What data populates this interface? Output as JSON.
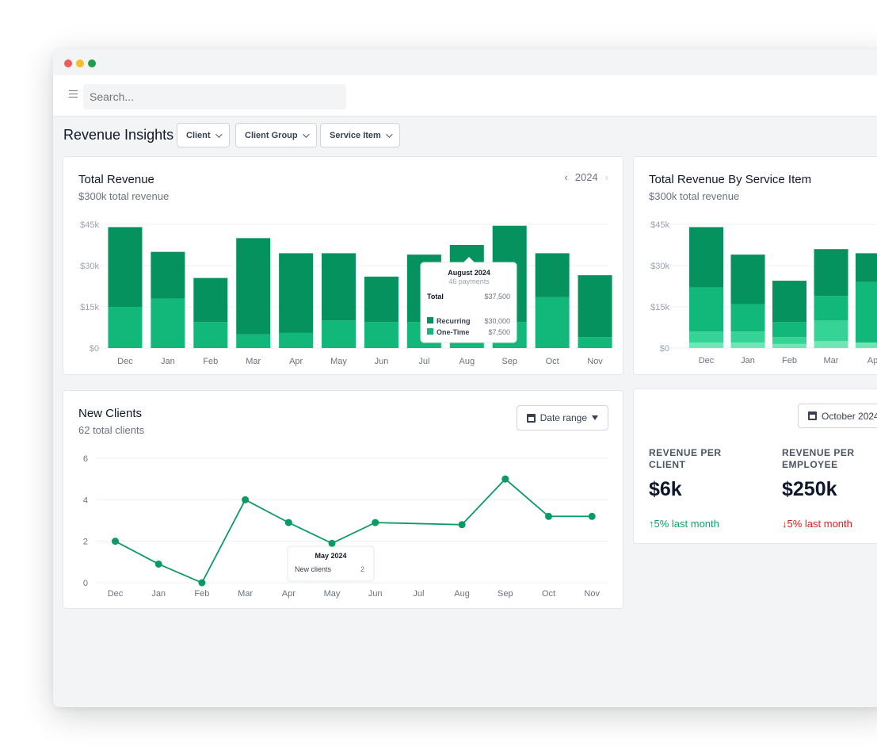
{
  "window": {
    "controls": [
      "close",
      "minimize",
      "maximize"
    ]
  },
  "search": {
    "placeholder": "Search..."
  },
  "page": {
    "title": "Revenue Insights"
  },
  "filters": [
    {
      "label": "Client"
    },
    {
      "label": "Client Group"
    },
    {
      "label": "Service Item"
    }
  ],
  "total_revenue": {
    "title": "Total Revenue",
    "subtitle": "$300k total revenue",
    "year": "2024",
    "prev_icon": "chevron-left-icon",
    "next_icon": "chevron-right-icon",
    "tooltip": {
      "title": "August 2024",
      "subtitle": "46 payments",
      "total_label": "Total",
      "total_value": "$37,500",
      "rows": [
        {
          "label": "Recurring",
          "value": "$30,000"
        },
        {
          "label": "One-Time",
          "value": "$7,500"
        }
      ]
    }
  },
  "revenue_by_service": {
    "title": "Total Revenue By Service Item",
    "subtitle": "$300k total revenue"
  },
  "new_clients": {
    "title": "New Clients",
    "subtitle": "62 total clients",
    "date_range_label": "Date range",
    "tooltip": {
      "title": "May 2024",
      "label": "New clients",
      "value": "2"
    }
  },
  "metrics": {
    "month_label": "October 2024",
    "items": [
      {
        "label": "REVENUE PER CLIENT",
        "value": "$6k",
        "change": "5% last month",
        "direction": "up"
      },
      {
        "label": "REVENUE PER EMPLOYEE",
        "value": "$250k",
        "change": "5% last month",
        "direction": "down"
      }
    ]
  },
  "colors": {
    "dark_green": "#05925f",
    "mid_green": "#12b87a",
    "light_green": "#35d496",
    "pale_green": "#6ee7b7",
    "line_green": "#0a9a63",
    "up": "#10a36a",
    "down": "#e11d1d"
  },
  "chart_data": [
    {
      "type": "bar",
      "stacked": true,
      "categories": [
        "Dec",
        "Jan",
        "Feb",
        "Mar",
        "Apr",
        "May",
        "Jun",
        "Jul",
        "Aug",
        "Sep",
        "Oct",
        "Nov"
      ],
      "series": [
        {
          "name": "One-Time",
          "values": [
            15000,
            18000,
            9500,
            5000,
            5500,
            10000,
            9500,
            9500,
            7500,
            9500,
            18500,
            4000
          ]
        },
        {
          "name": "Recurring",
          "values": [
            29000,
            17000,
            16000,
            35000,
            29000,
            24500,
            16500,
            24500,
            30000,
            35000,
            16000,
            22500
          ]
        }
      ],
      "ylim": [
        0,
        45000
      ],
      "yticks": [
        0,
        15000,
        30000,
        45000
      ],
      "ytick_labels": [
        "$0",
        "$15k",
        "$30k",
        "$45k"
      ],
      "grid": true
    },
    {
      "type": "bar",
      "stacked": true,
      "categories": [
        "Dec",
        "Jan",
        "Feb",
        "Mar",
        "Ap"
      ],
      "series": [
        {
          "values": [
            2000,
            2000,
            1500,
            2500,
            2000
          ]
        },
        {
          "values": [
            4000,
            4000,
            2500,
            7500,
            0
          ]
        },
        {
          "values": [
            16000,
            10000,
            5500,
            9000,
            22000
          ]
        },
        {
          "values": [
            22000,
            18000,
            15000,
            17000,
            10500
          ]
        }
      ],
      "ylim": [
        0,
        45000
      ],
      "yticks": [
        0,
        15000,
        30000,
        45000
      ],
      "ytick_labels": [
        "$0",
        "$15k",
        "$30k",
        "$45k"
      ],
      "grid": true
    },
    {
      "type": "line",
      "categories": [
        "Dec",
        "Jan",
        "Feb",
        "Mar",
        "Apr",
        "May",
        "Jun",
        "Jul",
        "Aug",
        "Sep",
        "Oct",
        "Nov"
      ],
      "points": [
        {
          "x": "Dec",
          "y": 2
        },
        {
          "x": "Jan",
          "y": 0.9
        },
        {
          "x": "Feb",
          "y": 0
        },
        {
          "x": "Mar",
          "y": 4
        },
        {
          "x": "Apr",
          "y": 2.9
        },
        {
          "x": "May",
          "y": 1.9
        },
        {
          "x": "Jun",
          "y": 2.9
        },
        {
          "x": "Aug",
          "y": 2.8
        },
        {
          "x": "Sep",
          "y": 5
        },
        {
          "x": "Oct",
          "y": 3.2
        },
        {
          "x": "Nov",
          "y": 3.2
        }
      ],
      "ylim": [
        0,
        6
      ],
      "yticks": [
        0,
        2,
        4,
        6
      ],
      "grid": true
    }
  ]
}
